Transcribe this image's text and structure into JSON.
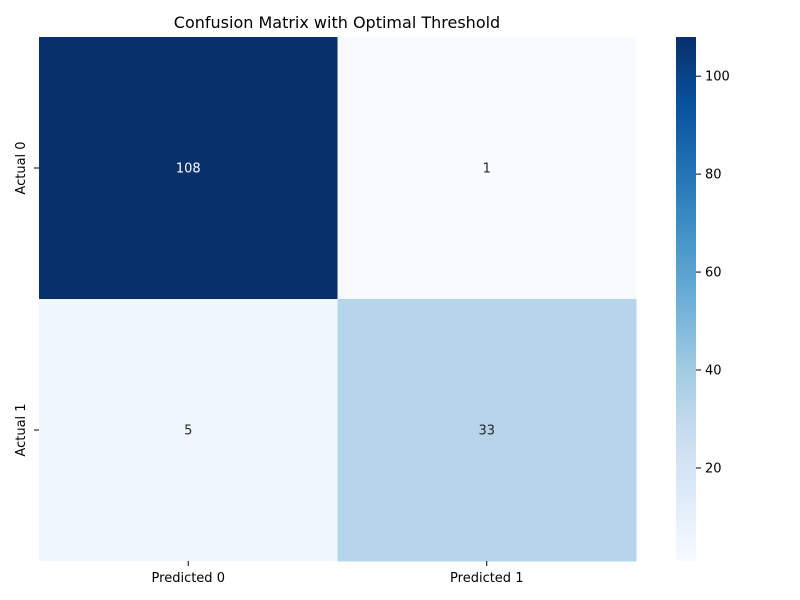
{
  "chart_data": {
    "type": "heatmap",
    "title": "Confusion Matrix with Optimal Threshold",
    "xlabel": "",
    "ylabel": "",
    "x_categories": [
      "Predicted 0",
      "Predicted 1"
    ],
    "y_categories": [
      "Actual 0",
      "Actual 1"
    ],
    "values": [
      [
        108,
        1
      ],
      [
        5,
        33
      ]
    ],
    "colormap": "Blues",
    "vmin": 1,
    "vmax": 108,
    "colorbar": {
      "ticks": [
        20,
        40,
        60,
        80,
        100
      ],
      "tick_labels": [
        "20",
        "40",
        "60",
        "80",
        "100"
      ]
    },
    "annotation_colors": {
      "dark_cell": "#ffffff",
      "light_cell": "#262626"
    },
    "grid": false
  }
}
